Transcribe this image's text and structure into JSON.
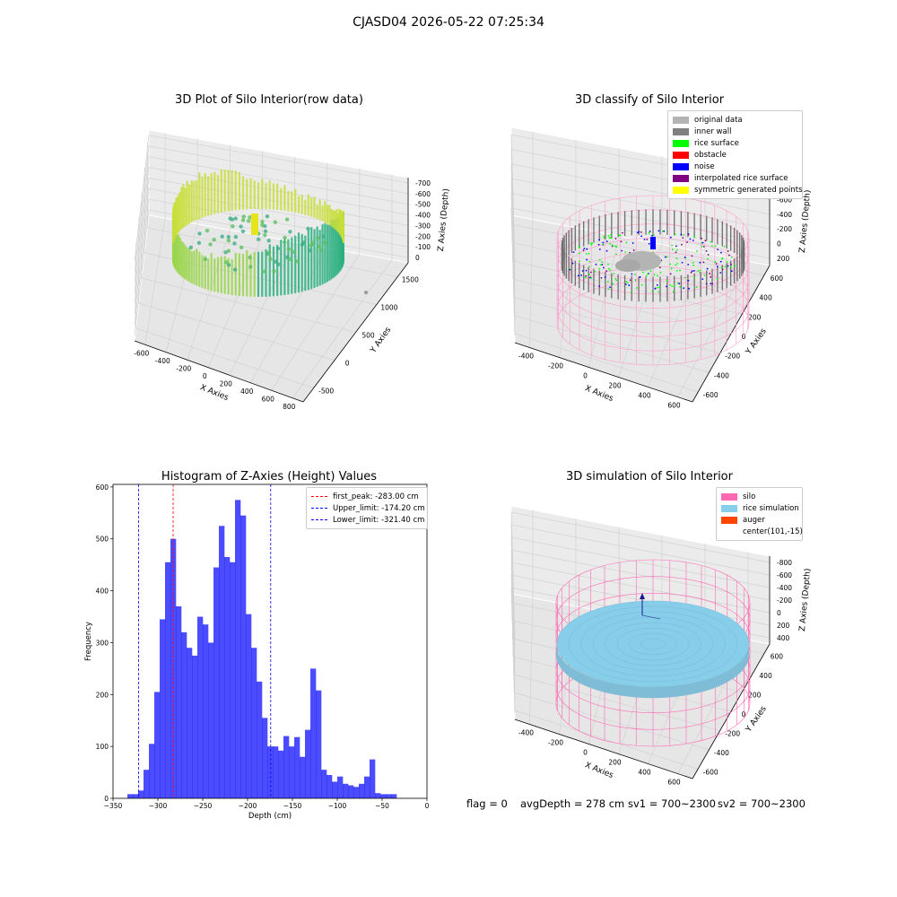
{
  "figure": {
    "suptitle": "CJASD04 2026-05-22 07:25:34",
    "status": {
      "flag": "flag = 0",
      "avg_depth": "avgDepth = 278 cm",
      "sv1": "sv1 = 700~2300",
      "sv2": "sv2 = 700~2300"
    }
  },
  "panels": {
    "raw3d": {
      "title": "3D Plot of Silo Interior(row data)",
      "xlabel": "X Axies",
      "ylabel": "Y Axies",
      "zlabel": "Z Axies (Depth)",
      "xticks": [
        "-600",
        "-400",
        "-200",
        "0",
        "200",
        "400",
        "600",
        "800"
      ],
      "yticks": [
        "-500",
        "0",
        "500",
        "1000",
        "1500"
      ],
      "zticks": [
        "0",
        "-100",
        "-200",
        "-300",
        "-400",
        "-500",
        "-600",
        "-700"
      ]
    },
    "classify3d": {
      "title": "3D classify of Silo Interior",
      "xlabel": "X Axies",
      "ylabel": "Y Axies",
      "zlabel": "Z Axies (Depth)",
      "xticks": [
        "-400",
        "-200",
        "0",
        "200",
        "400",
        "600"
      ],
      "yticks": [
        "-600",
        "-400",
        "-200",
        "0",
        "200",
        "400",
        "600"
      ],
      "zticks": [
        "200",
        "0",
        "-200",
        "-400",
        "-600",
        "-800"
      ],
      "legend": [
        {
          "label": "original data",
          "color": "#b4b4b4"
        },
        {
          "label": "inner wall",
          "color": "#808080"
        },
        {
          "label": "rice surface",
          "color": "#00ff00"
        },
        {
          "label": "obstacle",
          "color": "#ff0000"
        },
        {
          "label": "noise",
          "color": "#0000ff"
        },
        {
          "label": "interpolated rice surface",
          "color": "#800080"
        },
        {
          "label": "symmetric generated points",
          "color": "#ffff00"
        }
      ]
    },
    "simulation3d": {
      "title": "3D simulation of Silo Interior",
      "xlabel": "X Axies",
      "ylabel": "Y Axies",
      "zlabel": "Z Axies (Depth)",
      "xticks": [
        "-400",
        "-200",
        "0",
        "200",
        "400",
        "600"
      ],
      "yticks": [
        "-600",
        "-400",
        "-200",
        "0",
        "200",
        "400",
        "600"
      ],
      "zticks": [
        "400",
        "200",
        "0",
        "-200",
        "-400",
        "-600",
        "-800"
      ],
      "legend": [
        {
          "label": "silo",
          "color": "#ff69b4"
        },
        {
          "label": "rice simulation",
          "color": "#87ceeb"
        },
        {
          "label": "auger",
          "color": "#ff4500"
        },
        {
          "label": "center(101,-15)",
          "color": ""
        }
      ]
    }
  },
  "chart_data": [
    {
      "type": "bar",
      "title": "Histogram of Z-Axies (Height) Values",
      "xlabel": "Depth (cm)",
      "ylabel": "Frequency",
      "xlim": [
        -350,
        0
      ],
      "ylim": [
        0,
        605
      ],
      "xticks": [
        -350,
        -300,
        -250,
        -200,
        -150,
        -100,
        -50,
        0
      ],
      "yticks": [
        0,
        100,
        200,
        300,
        400,
        500,
        600
      ],
      "bar_color": "#0000ff",
      "bin_left_edges": [
        -334,
        -328,
        -322,
        -316,
        -310,
        -304,
        -298,
        -292,
        -286,
        -280,
        -274,
        -268,
        -262,
        -256,
        -250,
        -244,
        -238,
        -232,
        -226,
        -220,
        -214,
        -208,
        -202,
        -196,
        -190,
        -184,
        -178,
        -172,
        -166,
        -160,
        -154,
        -148,
        -142,
        -136,
        -130,
        -124,
        -118,
        -112,
        -106,
        -100,
        -94,
        -88,
        -82,
        -76,
        -70,
        -64,
        -58,
        -52,
        -46,
        -40,
        -34,
        -28,
        -22
      ],
      "bin_width": 6,
      "counts": [
        8,
        8,
        15,
        55,
        105,
        205,
        345,
        455,
        500,
        370,
        320,
        290,
        275,
        350,
        335,
        300,
        445,
        525,
        465,
        455,
        575,
        545,
        355,
        290,
        225,
        155,
        100,
        100,
        92,
        120,
        100,
        118,
        80,
        132,
        250,
        208,
        55,
        45,
        32,
        42,
        28,
        25,
        22,
        28,
        42,
        75,
        10,
        8,
        8,
        8,
        0,
        0,
        0
      ],
      "vlines": [
        {
          "name": "first_peak: -283.00 cm",
          "x": -283.0,
          "color": "#ff0000"
        },
        {
          "name": "Upper_limit: -174.20 cm",
          "x": -174.2,
          "color": "#0000ff"
        },
        {
          "name": "Lower_limit: -321.40 cm",
          "x": -321.4,
          "color": "#0000ff"
        }
      ],
      "legend_position": "upper right"
    }
  ]
}
